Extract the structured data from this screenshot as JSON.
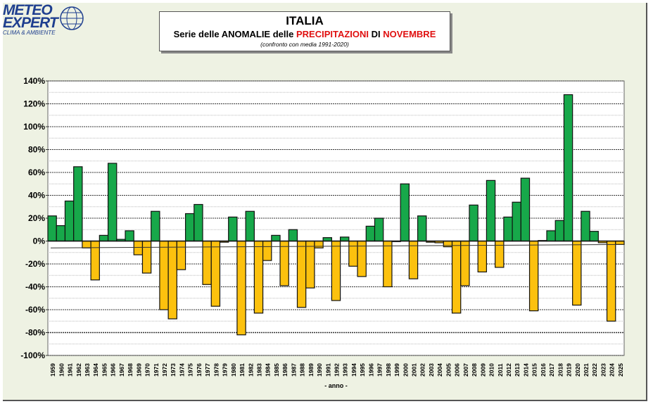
{
  "logo": {
    "line1": "METEO",
    "line2": "EXPERT",
    "line3": "CLIMA & AMBIENTE"
  },
  "header": {
    "title": "ITALIA",
    "subtitle_pre": "Serie delle ANOMALIE delle ",
    "subtitle_red1": "PRECIPITAZIONI",
    "subtitle_mid": " DI ",
    "subtitle_red2": "NOVEMBRE",
    "note": "(confronto con media 1991-2020)"
  },
  "colors": {
    "positive": "#17a84a",
    "negative": "#fcc10e",
    "red": "#e01010"
  },
  "chart_data": {
    "type": "bar",
    "title": "ITALIA - Serie delle ANOMALIE delle PRECIPITAZIONI DI NOVEMBRE",
    "xlabel": "- anno -",
    "ylabel": "",
    "ylim": [
      -100,
      140
    ],
    "yticks": [
      140,
      120,
      100,
      80,
      60,
      40,
      20,
      0,
      -20,
      -40,
      -60,
      -80,
      -100
    ],
    "ytick_labels": [
      "140%",
      "120%",
      "100%",
      "80%",
      "60%",
      "40%",
      "20%",
      "0%",
      "-20%",
      "-40%",
      "-60%",
      "-80%",
      "-100%"
    ],
    "categories": [
      "1959",
      "1960",
      "1961",
      "1962",
      "1963",
      "1964",
      "1965",
      "1966",
      "1967",
      "1968",
      "1969",
      "1970",
      "1971",
      "1972",
      "1973",
      "1974",
      "1975",
      "1976",
      "1977",
      "1978",
      "1979",
      "1980",
      "1981",
      "1982",
      "1983",
      "1984",
      "1985",
      "1986",
      "1987",
      "1988",
      "1989",
      "1990",
      "1991",
      "1992",
      "1993",
      "1994",
      "1995",
      "1996",
      "1997",
      "1998",
      "1999",
      "2000",
      "2001",
      "2002",
      "2003",
      "2004",
      "2005",
      "2006",
      "2007",
      "2008",
      "2009",
      "2010",
      "2011",
      "2012",
      "2013",
      "2014",
      "2015",
      "2016",
      "2017",
      "2018",
      "2019",
      "2020",
      "2021",
      "2022",
      "2023",
      "2024",
      "2025"
    ],
    "values": [
      22,
      13.5,
      35,
      65,
      -6,
      -34,
      5,
      68,
      1.5,
      9,
      -12,
      -28,
      26,
      -60,
      -68,
      -25,
      24,
      32,
      -38,
      -57,
      -1,
      21,
      -82,
      26,
      -63,
      -17,
      5,
      -39,
      10,
      -58,
      -41,
      -6,
      3,
      -52,
      3.5,
      -22,
      -31,
      13,
      20,
      -40,
      -0.5,
      50,
      -33,
      22,
      -1,
      -1.5,
      -5,
      -63,
      -39,
      31.5,
      -27,
      53,
      -23,
      21,
      34,
      55,
      -61,
      0.5,
      9,
      18,
      128,
      -56,
      26,
      8.5,
      -1.5,
      -70,
      -3
    ],
    "trend": {
      "start": -6,
      "end": -3
    },
    "grid": true
  }
}
